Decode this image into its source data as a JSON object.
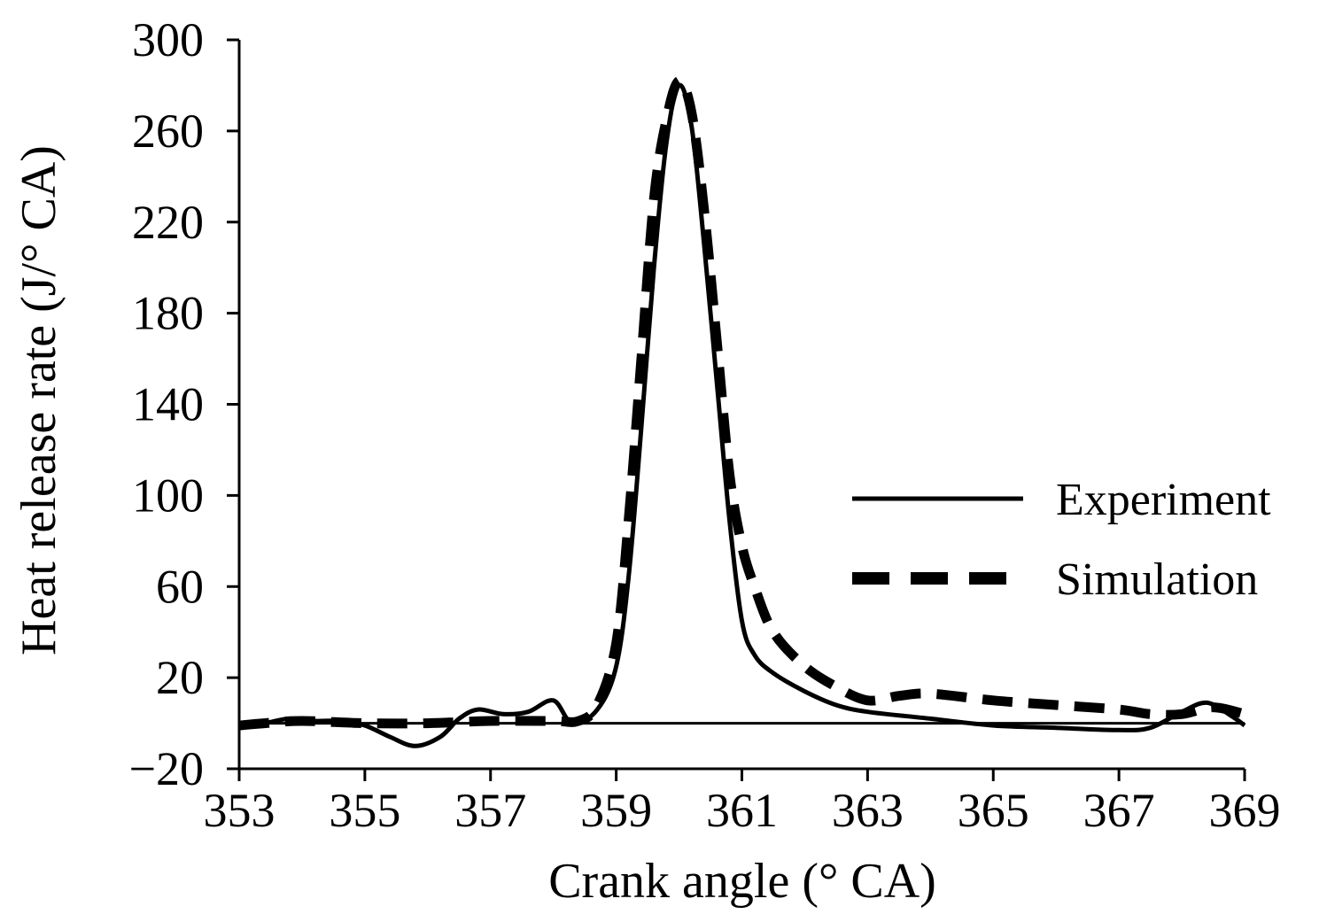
{
  "chart_data": {
    "type": "line",
    "title": "",
    "xlabel": "Crank angle (° CA)",
    "ylabel": "Heat release rate (J/° CA)",
    "xlim": [
      353,
      369
    ],
    "ylim": [
      -20,
      300
    ],
    "xticks": [
      353,
      355,
      357,
      359,
      361,
      363,
      365,
      367,
      369
    ],
    "yticks": [
      -20,
      20,
      60,
      100,
      140,
      180,
      220,
      260,
      300
    ],
    "ytick_labels": [
      "−20",
      "20",
      "60",
      "100",
      "140",
      "180",
      "220",
      "260",
      "300"
    ],
    "grid": false,
    "legend_position": "right",
    "series": [
      {
        "name": "Experiment",
        "style": "solid",
        "color": "#000000",
        "points": [
          [
            353.0,
            -1
          ],
          [
            353.4,
            0
          ],
          [
            353.8,
            2
          ],
          [
            354.2,
            1
          ],
          [
            354.6,
            1
          ],
          [
            355.0,
            -1
          ],
          [
            355.4,
            -6
          ],
          [
            355.8,
            -10
          ],
          [
            356.2,
            -6
          ],
          [
            356.5,
            2
          ],
          [
            356.8,
            6
          ],
          [
            357.2,
            4
          ],
          [
            357.6,
            5
          ],
          [
            358.0,
            10
          ],
          [
            358.3,
            0
          ],
          [
            358.7,
            6
          ],
          [
            359.0,
            25
          ],
          [
            359.2,
            65
          ],
          [
            359.4,
            130
          ],
          [
            359.6,
            200
          ],
          [
            359.8,
            255
          ],
          [
            360.0,
            280
          ],
          [
            360.2,
            262
          ],
          [
            360.4,
            210
          ],
          [
            360.6,
            150
          ],
          [
            360.8,
            90
          ],
          [
            361.0,
            45
          ],
          [
            361.2,
            30
          ],
          [
            361.5,
            22
          ],
          [
            362.0,
            14
          ],
          [
            362.5,
            8
          ],
          [
            363.0,
            5
          ],
          [
            364.0,
            2
          ],
          [
            365.0,
            -1
          ],
          [
            366.0,
            -2
          ],
          [
            367.0,
            -3
          ],
          [
            367.5,
            -2
          ],
          [
            368.0,
            5
          ],
          [
            368.4,
            9
          ],
          [
            368.8,
            3
          ],
          [
            369.0,
            -1
          ]
        ]
      },
      {
        "name": "Simulation",
        "style": "dashed",
        "color": "#000000",
        "points": [
          [
            353.0,
            -1
          ],
          [
            353.4,
            0
          ],
          [
            354.0,
            1
          ],
          [
            355.0,
            0
          ],
          [
            356.0,
            0
          ],
          [
            357.0,
            1
          ],
          [
            358.0,
            1
          ],
          [
            358.4,
            1
          ],
          [
            358.7,
            8
          ],
          [
            359.0,
            35
          ],
          [
            359.2,
            90
          ],
          [
            359.4,
            160
          ],
          [
            359.6,
            230
          ],
          [
            359.8,
            265
          ],
          [
            360.0,
            282
          ],
          [
            360.2,
            268
          ],
          [
            360.4,
            225
          ],
          [
            360.6,
            168
          ],
          [
            360.8,
            110
          ],
          [
            361.0,
            78
          ],
          [
            361.2,
            60
          ],
          [
            361.5,
            40
          ],
          [
            362.0,
            25
          ],
          [
            362.5,
            16
          ],
          [
            363.0,
            10
          ],
          [
            363.5,
            12
          ],
          [
            364.0,
            13
          ],
          [
            365.0,
            10
          ],
          [
            366.0,
            8
          ],
          [
            367.0,
            6
          ],
          [
            367.5,
            4
          ],
          [
            368.0,
            4
          ],
          [
            368.5,
            7
          ],
          [
            369.0,
            4
          ]
        ]
      }
    ]
  }
}
